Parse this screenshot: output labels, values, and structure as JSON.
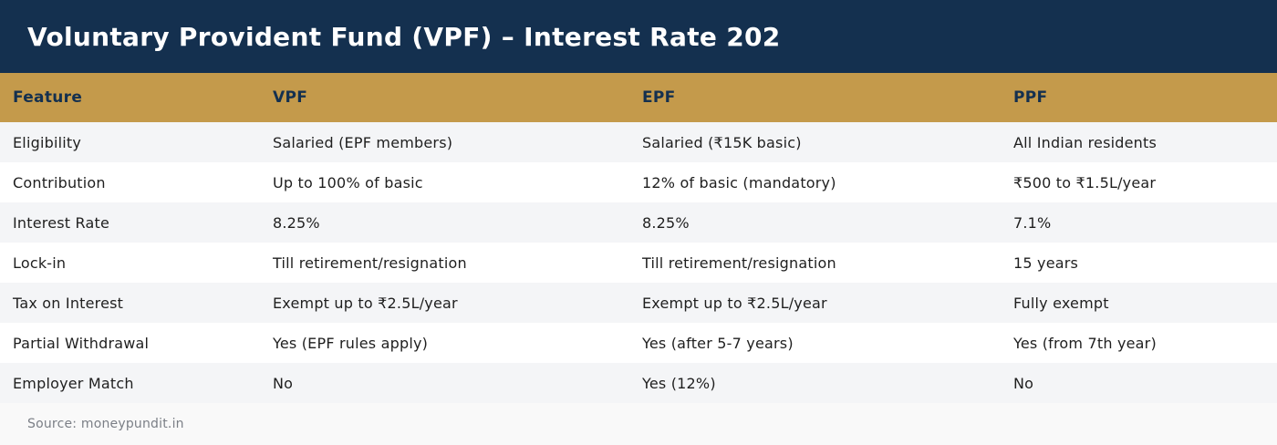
{
  "title": "Voluntary Provident Fund (VPF) – Interest Rate 202",
  "table": {
    "headers": [
      "Feature",
      "VPF",
      "EPF",
      "PPF"
    ],
    "rows": [
      [
        "Eligibility",
        "Salaried (EPF members)",
        "Salaried (₹15K basic)",
        "All Indian residents"
      ],
      [
        "Contribution",
        "Up to 100% of basic",
        "12% of basic (mandatory)",
        "₹500 to ₹1.5L/year"
      ],
      [
        "Interest Rate",
        "8.25%",
        "8.25%",
        "7.1%"
      ],
      [
        "Lock-in",
        "Till retirement/resignation",
        "Till retirement/resignation",
        "15 years"
      ],
      [
        "Tax on Interest",
        "Exempt up to ₹2.5L/year",
        "Exempt up to ₹2.5L/year",
        "Fully exempt"
      ],
      [
        "Partial Withdrawal",
        "Yes (EPF rules apply)",
        "Yes (after 5-7 years)",
        "Yes (from 7th year)"
      ],
      [
        "Employer Match",
        "No",
        "Yes (12%)",
        "No"
      ]
    ]
  },
  "source": "Source: moneypundit.in",
  "colors": {
    "title_bg": "#14304f",
    "header_bg": "#c49a4b",
    "header_text": "#14304f",
    "row_alt": "#f4f5f7"
  }
}
